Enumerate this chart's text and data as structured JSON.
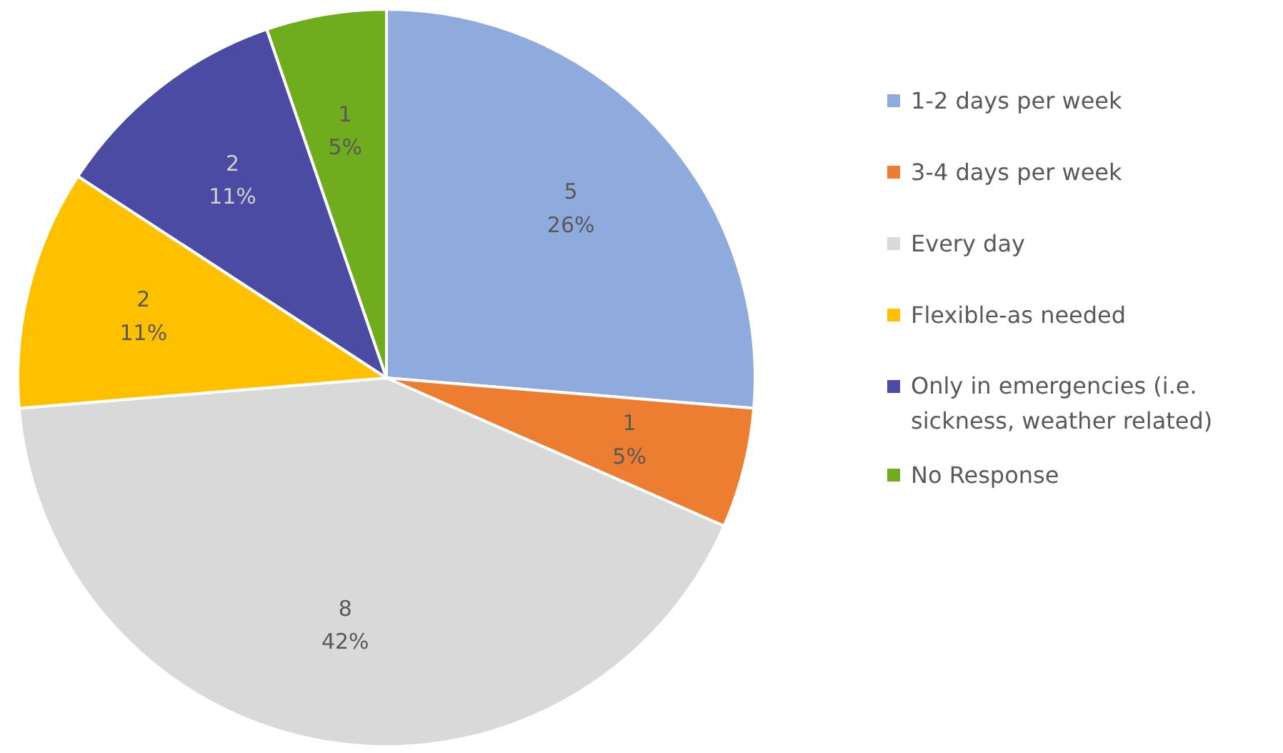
{
  "chart_data": {
    "type": "pie",
    "categories": [
      "1-2 days per week",
      "3-4 days per week",
      "Every day",
      "Flexible-as needed",
      "Only in emergencies (i.e. sickness, weather related)",
      "No Response"
    ],
    "values": [
      5,
      1,
      8,
      2,
      2,
      1
    ],
    "colors": [
      "#8faadc",
      "#ed7d31",
      "#d9d9d9",
      "#ffc000",
      "#4b4ba3",
      "#70ad1e"
    ],
    "value_labels": [
      "5\n26%",
      "1\n5%",
      "8\n42%",
      "2\n11%",
      "2\n11%",
      "1\n5%"
    ],
    "legend": "right"
  }
}
